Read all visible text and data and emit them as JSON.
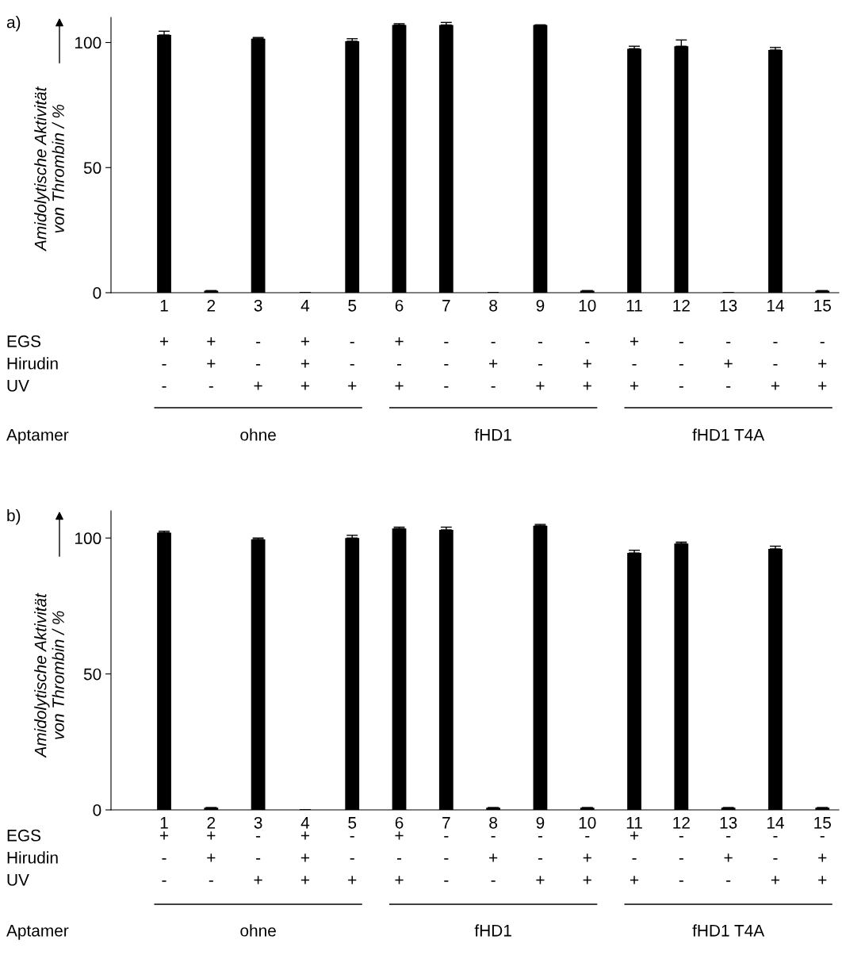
{
  "chart_data": [
    {
      "type": "bar",
      "title": "a)",
      "ylabel": "Amidolytische Aktivität\nvon Thrombin / %",
      "categories": [
        "1",
        "2",
        "3",
        "4",
        "5",
        "6",
        "7",
        "8",
        "9",
        "10",
        "11",
        "12",
        "13",
        "14",
        "15"
      ],
      "values": [
        103,
        0.8,
        101.5,
        0,
        100.5,
        107,
        107,
        0,
        107,
        0.8,
        97.5,
        98.5,
        0,
        97,
        0.8
      ],
      "errors": [
        1.5,
        null,
        0.5,
        null,
        1,
        0.5,
        1,
        null,
        null,
        null,
        1,
        2.5,
        null,
        1,
        null
      ],
      "color": "#000000",
      "ylim": [
        0,
        110
      ],
      "yticks": [
        0,
        50,
        100
      ],
      "grid": false,
      "annotations": [
        "EGS",
        "+",
        "+",
        "-",
        "+",
        "-",
        "+",
        "-",
        "-",
        "-",
        "-",
        "+",
        "-",
        "-",
        "-",
        "-",
        "Hirudin",
        "-",
        "+",
        "-",
        "+",
        "-",
        "-",
        "-",
        "+",
        "-",
        "+",
        "-",
        "-",
        "+",
        "-",
        "+",
        "UV",
        "-",
        "-",
        "+",
        "+",
        "+",
        "+",
        "-",
        "-",
        "+",
        "+",
        "+",
        "-",
        "-",
        "+",
        "+",
        "Aptamer",
        "ohne",
        "fHD1",
        "fHD1 T4A"
      ]
    },
    {
      "type": "bar",
      "title": "b)",
      "ylabel": "Amidolytische Aktivität\nvon Thrombin / %",
      "categories": [
        "1",
        "2",
        "3",
        "4",
        "5",
        "6",
        "7",
        "8",
        "9",
        "10",
        "11",
        "12",
        "13",
        "14",
        "15"
      ],
      "values": [
        102,
        0.8,
        99.5,
        0,
        100,
        103.5,
        103,
        0.8,
        104.5,
        0.8,
        94.5,
        98,
        0.8,
        96,
        0.8
      ],
      "errors": [
        0.5,
        null,
        0.5,
        null,
        1,
        0.5,
        1,
        null,
        0.5,
        null,
        1,
        0.5,
        null,
        1,
        null
      ],
      "color": "#000000",
      "ylim": [
        0,
        110
      ],
      "yticks": [
        0,
        50,
        100
      ],
      "grid": false,
      "annotations": [
        "EGS",
        "+",
        "+",
        "-",
        "+",
        "-",
        "+",
        "-",
        "-",
        "-",
        "-",
        "+",
        "-",
        "-",
        "-",
        "-",
        "Hirudin",
        "-",
        "+",
        "-",
        "+",
        "-",
        "-",
        "-",
        "+",
        "-",
        "+",
        "-",
        "-",
        "+",
        "-",
        "+",
        "UV",
        "-",
        "-",
        "+",
        "+",
        "+",
        "+",
        "-",
        "-",
        "+",
        "+",
        "+",
        "-",
        "-",
        "+",
        "+",
        "Aptamer",
        "ohne",
        "fHD1",
        "fHD1 T4A"
      ]
    }
  ]
}
